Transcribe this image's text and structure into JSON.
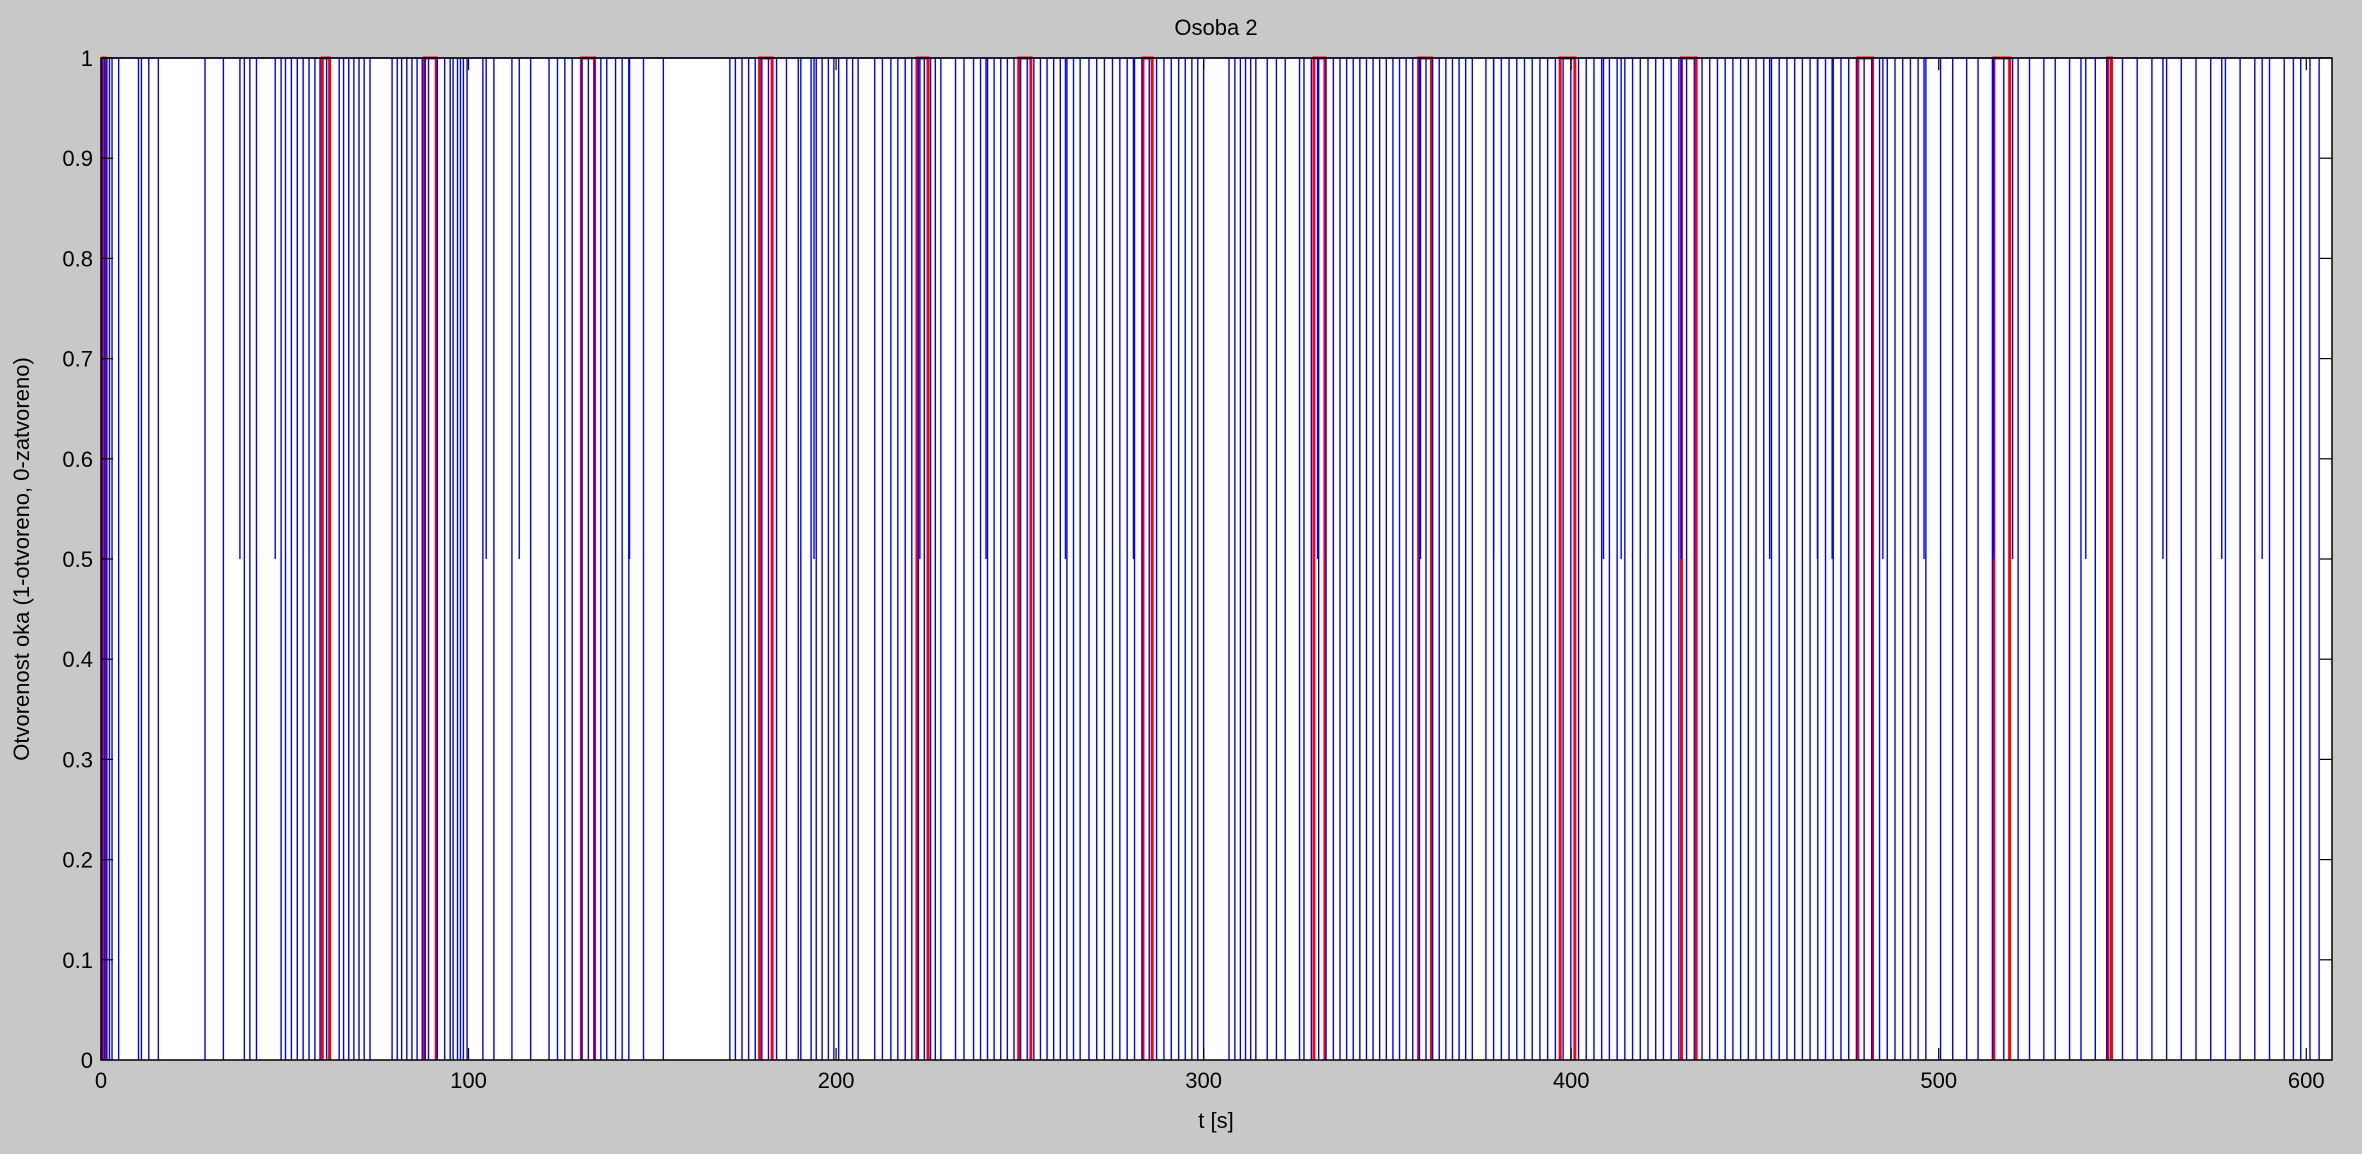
{
  "chart_data": {
    "type": "line",
    "title": "Osoba 2",
    "xlabel": "t [s]",
    "ylabel": "Otvorenost oka (1-otvoreno, 0-zatvoreno)",
    "xlim": [
      0,
      607
    ],
    "ylim": [
      0,
      1
    ],
    "xticks": [
      0,
      100,
      200,
      300,
      400,
      500,
      600
    ],
    "yticks": [
      0,
      0.1,
      0.2,
      0.3,
      0.4,
      0.5,
      0.6,
      0.7,
      0.8,
      0.9,
      1
    ],
    "ytick_labels": [
      "0",
      "0.1",
      "0.2",
      "0.3",
      "0.4",
      "0.5",
      "0.6",
      "0.7",
      "0.8",
      "0.9",
      "1"
    ],
    "grid": false,
    "colors": {
      "blink_series": "#0000ff",
      "marker_series": "#ff0000",
      "background": "#c8c8c8",
      "axes": "#ffffff"
    },
    "series": [
      {
        "name": "eye openness",
        "color": "#0000ff",
        "style": "pulses",
        "baseline": 1,
        "pulse_bottom": 0,
        "half_pulse_value": 0.5,
        "full_pulses_t": [
          0.3,
          1.0,
          1.6,
          2.3,
          3.0,
          4.8,
          10.2,
          11.0,
          13.0,
          15.6,
          28.3,
          33.3,
          39.0,
          40.5,
          42.3,
          49.0,
          50.2,
          51.8,
          53.4,
          55.0,
          56.6,
          58.2,
          59.6,
          61.4,
          64.8,
          66.0,
          67.4,
          68.8,
          70.2,
          71.6,
          73.2,
          79.2,
          80.6,
          81.8,
          83.2,
          84.6,
          86.0,
          87.4,
          88.2,
          89.1,
          91.5,
          93.5,
          95.0,
          95.8,
          97.0,
          97.8,
          98.6,
          99.6,
          103.9,
          106.9,
          111.8,
          116.9,
          121.9,
          124.2,
          126.2,
          128.2,
          130.8,
          132.6,
          134.2,
          136.0,
          137.6,
          140.0,
          141.8,
          143.6,
          147.6,
          153.0,
          171.1,
          172.6,
          174.4,
          176.2,
          178.0,
          179.8,
          181.6,
          183.8,
          186.5,
          189.7,
          190.4,
          193.2,
          194.6,
          196.2,
          197.9,
          199.4,
          200.7,
          202.9,
          204.5,
          206.0,
          210.5,
          212.6,
          214.9,
          216.8,
          218.8,
          220.6,
          222.4,
          224.0,
          225.7,
          227.0,
          228.5,
          232.5,
          234.8,
          237.4,
          239.3,
          241.2,
          243.0,
          244.8,
          246.6,
          248.4,
          250.2,
          252.0,
          253.8,
          255.6,
          257.4,
          259.2,
          261.0,
          262.8,
          264.6,
          266.4,
          268.8,
          270.9,
          273.0,
          275.2,
          277.2,
          279.2,
          281.2,
          283.2,
          285.2,
          287.2,
          289.2,
          291.2,
          293.2,
          295.0,
          296.8,
          298.4,
          300.0,
          306.9,
          308.5,
          310.0,
          311.4,
          312.8,
          314.2,
          317.3,
          319.8,
          322.2,
          326.1,
          327.3,
          329.3,
          331.3,
          333.3,
          335.3,
          337.1,
          338.9,
          340.7,
          342.5,
          344.3,
          346.1,
          347.9,
          349.7,
          351.5,
          353.3,
          355.1,
          356.9,
          358.7,
          360.5,
          362.3,
          364.1,
          365.9,
          367.7,
          369.5,
          371.3,
          373.1,
          376.8,
          378.9,
          381.0,
          383.1,
          385.2,
          387.3,
          389.4,
          391.5,
          393.6,
          395.7,
          397.8,
          399.9,
          402.0,
          404.1,
          406.2,
          408.3,
          410.4,
          412.5,
          414.6,
          416.7,
          418.8,
          420.9,
          423.0,
          425.1,
          427.2,
          429.3,
          431.4,
          433.5,
          435.6,
          437.7,
          439.8,
          441.9,
          444.0,
          446.1,
          448.2,
          450.3,
          452.4,
          454.5,
          456.6,
          458.7,
          460.8,
          462.9,
          465.0,
          467.1,
          469.2,
          471.3,
          473.4,
          475.5,
          477.6,
          479.7,
          481.8,
          483.9,
          486.0,
          488.1,
          490.2,
          492.3,
          494.4,
          496.5,
          500.5,
          503.8,
          507.6,
          510.7,
          514.6,
          517.7,
          521.6,
          524.7,
          528.6,
          531.7,
          535.6,
          538.7,
          542.6,
          545.7,
          550.0,
          554.0,
          558.0,
          562.0,
          566.0,
          570.0,
          574.0,
          578.0,
          582.0,
          586.0,
          590.0,
          594.0,
          596.5,
          598.5,
          601.0,
          603.5
        ],
        "half_pulses_t": [
          37.8,
          47.4,
          104.8,
          113.8,
          143.8,
          194.0,
          222.8,
          240.8,
          262.4,
          280.9,
          331.0,
          359.0,
          378.9,
          408.8,
          413.6,
          430.0,
          454.0,
          467.0,
          471.0,
          484.8,
          496.0,
          514.9,
          520.1,
          540.0,
          561.0,
          577.0,
          588.0
        ]
      },
      {
        "name": "marker",
        "color": "#ff0000",
        "style": "pulse-pairs",
        "pairs": [
          [
            0.5,
            1.2
          ],
          [
            60.2,
            62.2
          ],
          [
            88.0,
            91.2
          ],
          [
            130.7,
            134.3
          ],
          [
            179.2,
            182.6
          ],
          [
            222.0,
            225.0
          ],
          [
            249.7,
            253.0
          ],
          [
            283.5,
            286.0
          ],
          [
            330.0,
            333.0
          ],
          [
            358.5,
            362.0
          ],
          [
            397.0,
            401.0
          ],
          [
            430.0,
            434.0
          ],
          [
            478.0,
            482.0
          ],
          [
            515.0,
            519.3
          ],
          [
            546.0,
            547.0
          ]
        ]
      }
    ]
  }
}
